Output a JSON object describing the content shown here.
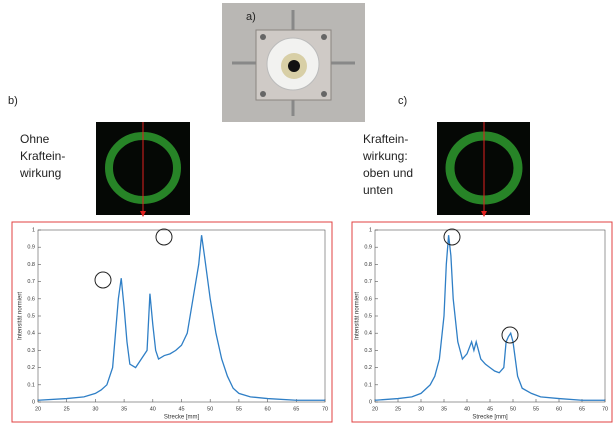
{
  "labels": {
    "a": "a)",
    "b": "b)",
    "c": "c)"
  },
  "captions": {
    "b": [
      "Ohne",
      "Kraftein-",
      "wirkung"
    ],
    "c": [
      "Kraftein-",
      "wirkung:",
      "oben und",
      "unten"
    ]
  },
  "chart_data": [
    {
      "type": "line",
      "xlabel": "Strecke [mm]",
      "ylabel": "Intensität normiert",
      "color": "#2f7fc6",
      "x": [
        20,
        25,
        28,
        30,
        31,
        32,
        33,
        33.5,
        34,
        34.5,
        35,
        35.5,
        36,
        37,
        38,
        39,
        39.5,
        40,
        40.5,
        41,
        42,
        43,
        44,
        45,
        46,
        47,
        48,
        48.5,
        49,
        50,
        51,
        52,
        53,
        54,
        55,
        57,
        60,
        65,
        70
      ],
      "values": [
        0.01,
        0.02,
        0.03,
        0.05,
        0.07,
        0.1,
        0.2,
        0.4,
        0.6,
        0.72,
        0.55,
        0.35,
        0.22,
        0.2,
        0.25,
        0.3,
        0.63,
        0.45,
        0.3,
        0.25,
        0.27,
        0.28,
        0.3,
        0.33,
        0.4,
        0.6,
        0.8,
        0.97,
        0.85,
        0.6,
        0.4,
        0.25,
        0.15,
        0.08,
        0.05,
        0.03,
        0.02,
        0.01,
        0.01
      ],
      "xlim": [
        20,
        70
      ],
      "xticks": [
        20,
        25,
        30,
        35,
        40,
        45,
        50,
        55,
        60,
        65,
        70
      ],
      "ylim": [
        0,
        1
      ],
      "yticks": [
        0,
        0.1,
        0.2,
        0.3,
        0.4,
        0.5,
        0.6,
        0.7,
        0.8,
        0.9,
        1
      ]
    },
    {
      "type": "line",
      "xlabel": "Strecke [mm]",
      "ylabel": "Intensität normiert",
      "color": "#2f7fc6",
      "x": [
        20,
        25,
        28,
        30,
        32,
        33,
        34,
        35,
        35.5,
        36,
        36.5,
        37,
        38,
        39,
        40,
        41,
        41.5,
        42,
        43,
        44,
        45,
        46,
        47,
        48,
        48.5,
        49,
        49.5,
        50,
        51,
        52,
        54,
        56,
        60,
        65,
        70
      ],
      "values": [
        0.01,
        0.02,
        0.03,
        0.05,
        0.1,
        0.15,
        0.25,
        0.5,
        0.8,
        0.97,
        0.85,
        0.6,
        0.35,
        0.25,
        0.28,
        0.35,
        0.3,
        0.35,
        0.25,
        0.22,
        0.2,
        0.18,
        0.17,
        0.2,
        0.35,
        0.38,
        0.4,
        0.35,
        0.15,
        0.08,
        0.05,
        0.03,
        0.02,
        0.01,
        0.01
      ],
      "xlim": [
        20,
        70
      ],
      "xticks": [
        20,
        25,
        30,
        35,
        40,
        45,
        50,
        55,
        60,
        65,
        70
      ],
      "ylim": [
        0,
        1
      ],
      "yticks": [
        0,
        0.1,
        0.2,
        0.3,
        0.4,
        0.5,
        0.6,
        0.7,
        0.8,
        0.9,
        1
      ]
    }
  ]
}
